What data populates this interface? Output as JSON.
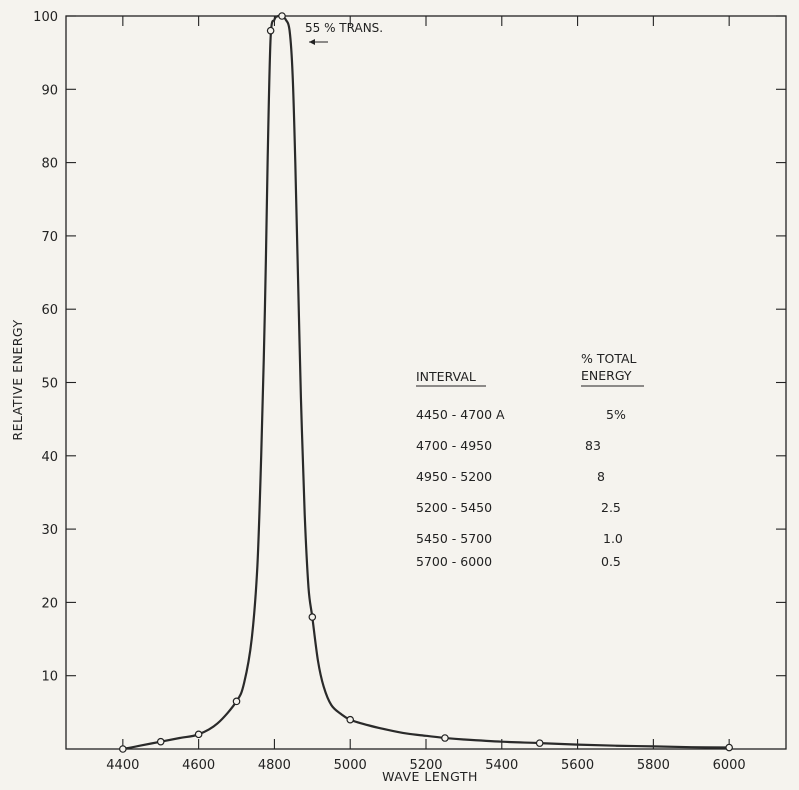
{
  "chart_data": {
    "type": "line",
    "xlabel": "WAVE LENGTH",
    "ylabel": "RELATIVE ENERGY",
    "xlim": [
      4250,
      6150
    ],
    "ylim": [
      0,
      100
    ],
    "x_ticks": [
      4400,
      4600,
      4800,
      5000,
      5200,
      5400,
      5600,
      5800,
      6000
    ],
    "y_ticks": [
      10,
      20,
      30,
      40,
      50,
      60,
      70,
      80,
      90,
      100
    ],
    "grid": false,
    "series": [
      {
        "markers": {
          "x": [
            4400,
            4500,
            4600,
            4700,
            4790,
            4820,
            4900,
            5000,
            5250,
            5500,
            6000
          ],
          "y": [
            0,
            1,
            2,
            6.5,
            98,
            100,
            18,
            4,
            1.5,
            0.8,
            0.2
          ]
        },
        "curve": {
          "x": [
            4400,
            4450,
            4500,
            4550,
            4600,
            4650,
            4700,
            4720,
            4740,
            4755,
            4765,
            4775,
            4782,
            4790,
            4800,
            4810,
            4820,
            4830,
            4840,
            4848,
            4855,
            4862,
            4870,
            4880,
            4890,
            4900,
            4915,
            4930,
            4950,
            4975,
            5000,
            5050,
            5100,
            5150,
            5200,
            5250,
            5300,
            5400,
            5500,
            5600,
            5700,
            5800,
            5900,
            6000
          ],
          "y": [
            0,
            0.5,
            1,
            1.5,
            2,
            3.5,
            6.5,
            9,
            15,
            25,
            40,
            60,
            80,
            97,
            99.5,
            100,
            100,
            99.5,
            98,
            92,
            80,
            65,
            48,
            32,
            22,
            18,
            12,
            8.5,
            6,
            4.8,
            4,
            3.2,
            2.6,
            2.1,
            1.8,
            1.5,
            1.3,
            1.0,
            0.8,
            0.6,
            0.45,
            0.35,
            0.25,
            0.2
          ]
        }
      }
    ],
    "annotations": [
      {
        "text": "55 % TRANS.",
        "x": 4830,
        "y": 100
      }
    ],
    "table": {
      "headers": {
        "interval": "INTERVAL",
        "energy_line1": "% TOTAL",
        "energy_line2": "ENERGY"
      },
      "rows": [
        {
          "interval": "4450 - 4700 A",
          "energy": "5%"
        },
        {
          "interval": "4700  -  4950",
          "energy": "83"
        },
        {
          "interval": "4950  -  5200",
          "energy": "8"
        },
        {
          "interval": "5200  -  5450",
          "energy": "2.5"
        },
        {
          "interval": "5450  -  5700",
          "energy": "1.0"
        },
        {
          "interval": "5700  -  6000",
          "energy": "0.5"
        }
      ]
    }
  }
}
